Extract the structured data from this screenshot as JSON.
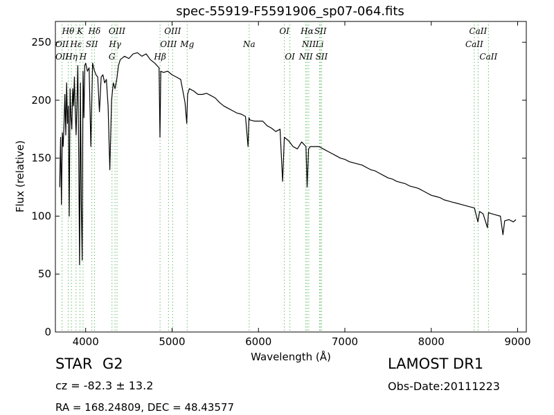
{
  "chart_data": {
    "type": "line",
    "title": "spec-55919-F5591906_sp07-064.fits",
    "xlabel": "Wavelength (Å)",
    "ylabel": "Flux (relative)",
    "xlim": [
      3650,
      9100
    ],
    "ylim": [
      0,
      268
    ],
    "xticks": [
      4000,
      5000,
      6000,
      7000,
      8000,
      9000
    ],
    "yticks": [
      0,
      50,
      100,
      150,
      200,
      250
    ],
    "grid": false,
    "colors": {
      "spectrum": "#000000",
      "line_markers": "#66bb66"
    },
    "series": [
      {
        "x": [
          3700,
          3710,
          3720,
          3730,
          3740,
          3750,
          3760,
          3770,
          3780,
          3790,
          3800,
          3810,
          3820,
          3830,
          3840,
          3850,
          3860,
          3870,
          3880,
          3890,
          3900,
          3910,
          3920,
          3930,
          3940,
          3950,
          3960,
          3970,
          3980,
          3990,
          4000,
          4020,
          4040,
          4060,
          4080,
          4100,
          4120,
          4140,
          4160,
          4180,
          4200,
          4220,
          4240,
          4260,
          4280,
          4300,
          4320,
          4340,
          4360,
          4380,
          4400,
          4450,
          4500,
          4550,
          4600,
          4650,
          4700,
          4750,
          4800,
          4850,
          4860,
          4870,
          4900,
          4950,
          5000,
          5050,
          5100,
          5150,
          5170,
          5180,
          5200,
          5250,
          5300,
          5350,
          5400,
          5450,
          5500,
          5550,
          5600,
          5650,
          5700,
          5750,
          5800,
          5850,
          5880,
          5890,
          5900,
          5950,
          6000,
          6050,
          6100,
          6150,
          6200,
          6250,
          6280,
          6300,
          6350,
          6400,
          6450,
          6500,
          6550,
          6563,
          6580,
          6600,
          6650,
          6700,
          6750,
          6800,
          6850,
          6900,
          6950,
          7000,
          7050,
          7100,
          7150,
          7200,
          7250,
          7300,
          7350,
          7400,
          7450,
          7500,
          7550,
          7600,
          7650,
          7700,
          7750,
          7800,
          7850,
          7900,
          7950,
          8000,
          8050,
          8100,
          8150,
          8200,
          8250,
          8300,
          8350,
          8400,
          8450,
          8500,
          8540,
          8560,
          8600,
          8650,
          8662,
          8700,
          8750,
          8800,
          8830,
          8850,
          8900,
          8950,
          8980
        ],
        "y": [
          125,
          168,
          110,
          172,
          160,
          180,
          205,
          170,
          215,
          180,
          195,
          100,
          210,
          185,
          175,
          210,
          195,
          220,
          190,
          170,
          200,
          230,
          150,
          58,
          215,
          110,
          62,
          225,
          185,
          230,
          232,
          225,
          228,
          160,
          232,
          226,
          222,
          220,
          190,
          220,
          222,
          215,
          218,
          195,
          140,
          200,
          215,
          210,
          218,
          230,
          235,
          238,
          236,
          240,
          241,
          238,
          240,
          235,
          232,
          228,
          168,
          225,
          224,
          225,
          222,
          220,
          218,
          198,
          180,
          205,
          210,
          208,
          205,
          205,
          206,
          204,
          202,
          198,
          195,
          193,
          191,
          189,
          188,
          186,
          160,
          185,
          183,
          182,
          182,
          182,
          178,
          176,
          173,
          175,
          130,
          168,
          165,
          160,
          158,
          164,
          160,
          125,
          158,
          160,
          160,
          160,
          158,
          156,
          154,
          152,
          150,
          149,
          147,
          146,
          145,
          144,
          142,
          140,
          139,
          137,
          135,
          133,
          132,
          130,
          129,
          128,
          126,
          125,
          124,
          122,
          120,
          118,
          117,
          116,
          114,
          113,
          112,
          111,
          110,
          109,
          108,
          107,
          95,
          104,
          102,
          90,
          103,
          102,
          101,
          100,
          84,
          96,
          97,
          95,
          97
        ]
      }
    ],
    "lines_top": [
      {
        "label": "Hθ",
        "x": 3798,
        "color": "#66bb66"
      },
      {
        "label": "K",
        "x": 3934,
        "color": "#66bb66"
      },
      {
        "label": "Hδ",
        "x": 4102,
        "color": "#66bb66"
      },
      {
        "label": "OIII",
        "x": 4363,
        "color": "#66bb66"
      },
      {
        "label": "OIII",
        "x": 5007,
        "color": "#66bb66"
      },
      {
        "label": "OI",
        "x": 6300,
        "color": "#66bb66"
      },
      {
        "label": "Hα",
        "x": 6563,
        "color": "#66bb66"
      },
      {
        "label": "SII",
        "x": 6717,
        "color": "#66bb66"
      },
      {
        "label": "CaII",
        "x": 8542,
        "color": "#66bb66"
      }
    ],
    "lines_mid": [
      {
        "label": "OII",
        "x": 3727,
        "color": "#66bb66"
      },
      {
        "label": "Hε",
        "x": 3889,
        "color": "#66bb66"
      },
      {
        "label": "SII",
        "x": 4072,
        "color": "#66bb66"
      },
      {
        "label": "Hγ",
        "x": 4340,
        "color": "#66bb66"
      },
      {
        "label": "OIII",
        "x": 4959,
        "color": "#66bb66"
      },
      {
        "label": "Mg",
        "x": 5175,
        "color": "#66bb66"
      },
      {
        "label": "Na",
        "x": 5893,
        "color": "#66bb66"
      },
      {
        "label": "NII",
        "x": 6583,
        "color": "#66bb66"
      },
      {
        "label": "Li",
        "x": 6708,
        "color": "#66bb66"
      },
      {
        "label": "CaII",
        "x": 8498,
        "color": "#66bb66"
      }
    ],
    "lines_low": [
      {
        "label": "OII",
        "x": 3727,
        "color": "#66bb66"
      },
      {
        "label": "Hη",
        "x": 3835,
        "color": "#66bb66"
      },
      {
        "label": "H",
        "x": 3970,
        "color": "#66bb66"
      },
      {
        "label": "G",
        "x": 4305,
        "color": "#66bb66"
      },
      {
        "label": "Hβ",
        "x": 4861,
        "color": "#66bb66"
      },
      {
        "label": "OI",
        "x": 6364,
        "color": "#66bb66"
      },
      {
        "label": "NII",
        "x": 6548,
        "color": "#66bb66"
      },
      {
        "label": "SII",
        "x": 6731,
        "color": "#66bb66"
      },
      {
        "label": "CaII",
        "x": 8662,
        "color": "#66bb66"
      }
    ]
  },
  "info": {
    "object_class": "STAR",
    "subclass": "G2",
    "cz_text": "cz = -82.3 ± 13.2",
    "coords_text": "RA = 168.24809, DEC = 48.43577",
    "survey": "LAMOST DR1",
    "obs_date": "Obs-Date:20111223"
  }
}
